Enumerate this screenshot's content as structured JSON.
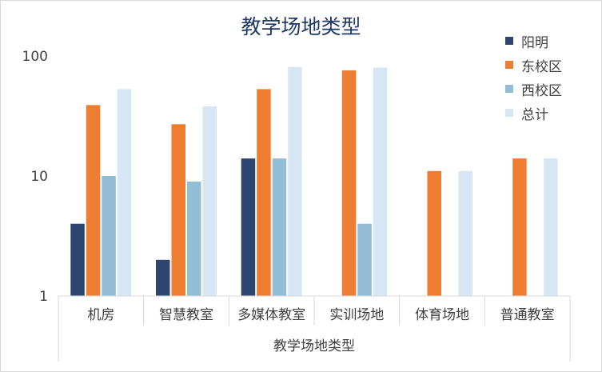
{
  "chart_data": {
    "type": "bar",
    "title": "教学场地类型",
    "xlabel": "教学场地类型",
    "ylabel": "",
    "yscale": "log",
    "ylim": [
      1,
      100
    ],
    "yticks": [
      "1",
      "10",
      "100"
    ],
    "grid": false,
    "legend_position": "right",
    "categories": [
      "机房",
      "智慧教室",
      "多媒体教室",
      "实训场地",
      "体育场地",
      "普通教室"
    ],
    "series": [
      {
        "name": "阳明",
        "color": "#2e4570",
        "values": [
          4,
          2,
          14,
          null,
          null,
          null
        ]
      },
      {
        "name": "东校区",
        "color": "#ed7d31",
        "values": [
          39,
          27,
          53,
          76,
          11,
          14
        ]
      },
      {
        "name": "西校区",
        "color": "#93bcd6",
        "values": [
          10,
          9,
          14,
          4,
          null,
          null
        ]
      },
      {
        "name": "总计",
        "color": "#d6e6f4",
        "values": [
          53,
          38,
          81,
          80,
          11,
          14
        ]
      }
    ]
  }
}
